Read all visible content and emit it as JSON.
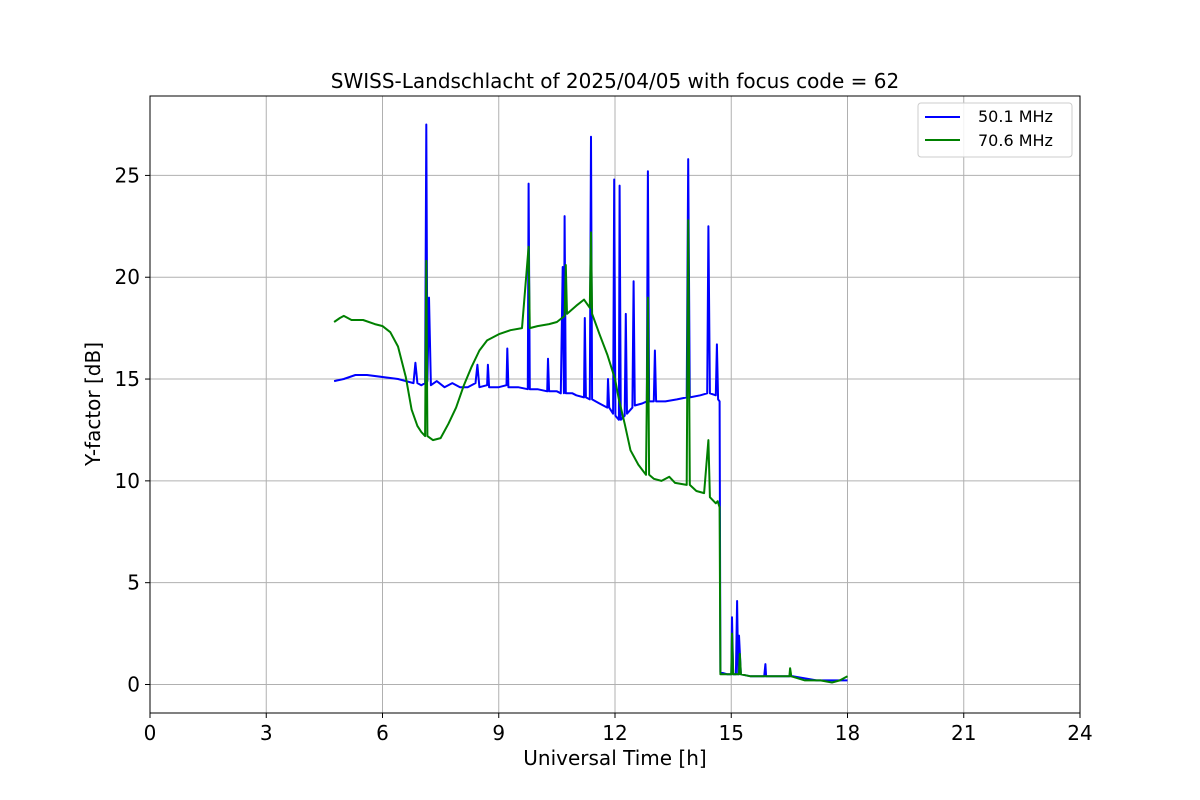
{
  "chart_data": {
    "type": "line",
    "title": "SWISS-Landschlacht of 2025/04/05 with focus code = 62",
    "xlabel": "Universal Time [h]",
    "ylabel": "Y-factor [dB]",
    "xlim": [
      0,
      24
    ],
    "ylim": [
      -1.4,
      28.9
    ],
    "xticks": [
      0,
      3,
      6,
      9,
      12,
      15,
      18,
      21,
      24
    ],
    "yticks": [
      0,
      5,
      10,
      15,
      20,
      25
    ],
    "grid": true,
    "legend_position": "top-right",
    "series": [
      {
        "name": "50.1 MHz",
        "color": "#0000ff",
        "points": [
          [
            4.75,
            14.9
          ],
          [
            5.0,
            15.0
          ],
          [
            5.3,
            15.2
          ],
          [
            5.6,
            15.2
          ],
          [
            6.0,
            15.1
          ],
          [
            6.4,
            15.0
          ],
          [
            6.8,
            14.8
          ],
          [
            6.85,
            15.8
          ],
          [
            6.9,
            14.8
          ],
          [
            7.0,
            14.7
          ],
          [
            7.1,
            14.8
          ],
          [
            7.13,
            27.5
          ],
          [
            7.16,
            14.9
          ],
          [
            7.2,
            19.0
          ],
          [
            7.25,
            14.7
          ],
          [
            7.4,
            14.9
          ],
          [
            7.6,
            14.6
          ],
          [
            7.8,
            14.8
          ],
          [
            8.0,
            14.6
          ],
          [
            8.2,
            14.6
          ],
          [
            8.4,
            14.8
          ],
          [
            8.45,
            15.7
          ],
          [
            8.5,
            14.6
          ],
          [
            8.7,
            14.7
          ],
          [
            8.72,
            15.7
          ],
          [
            8.75,
            14.6
          ],
          [
            9.0,
            14.6
          ],
          [
            9.2,
            14.7
          ],
          [
            9.22,
            16.5
          ],
          [
            9.25,
            14.6
          ],
          [
            9.5,
            14.6
          ],
          [
            9.75,
            14.5
          ],
          [
            9.77,
            24.6
          ],
          [
            9.8,
            14.5
          ],
          [
            10.0,
            14.5
          ],
          [
            10.25,
            14.4
          ],
          [
            10.27,
            16.0
          ],
          [
            10.3,
            14.4
          ],
          [
            10.5,
            14.4
          ],
          [
            10.6,
            14.3
          ],
          [
            10.65,
            20.5
          ],
          [
            10.68,
            14.3
          ],
          [
            10.7,
            23.0
          ],
          [
            10.73,
            14.3
          ],
          [
            10.9,
            14.3
          ],
          [
            11.0,
            14.2
          ],
          [
            11.2,
            14.1
          ],
          [
            11.22,
            18.0
          ],
          [
            11.25,
            14.1
          ],
          [
            11.35,
            14.0
          ],
          [
            11.38,
            26.9
          ],
          [
            11.41,
            14.0
          ],
          [
            11.6,
            13.8
          ],
          [
            11.8,
            13.6
          ],
          [
            11.82,
            15.0
          ],
          [
            11.85,
            13.6
          ],
          [
            11.95,
            13.3
          ],
          [
            11.98,
            24.8
          ],
          [
            12.01,
            13.2
          ],
          [
            12.1,
            13.0
          ],
          [
            12.12,
            24.5
          ],
          [
            12.15,
            13.0
          ],
          [
            12.25,
            13.2
          ],
          [
            12.28,
            18.2
          ],
          [
            12.31,
            13.3
          ],
          [
            12.45,
            13.6
          ],
          [
            12.48,
            19.8
          ],
          [
            12.51,
            13.7
          ],
          [
            12.7,
            13.8
          ],
          [
            12.82,
            13.9
          ],
          [
            12.85,
            25.2
          ],
          [
            12.88,
            13.9
          ],
          [
            13.0,
            13.9
          ],
          [
            13.03,
            16.4
          ],
          [
            13.06,
            13.9
          ],
          [
            13.3,
            13.9
          ],
          [
            13.6,
            14.0
          ],
          [
            13.85,
            14.1
          ],
          [
            13.89,
            25.8
          ],
          [
            13.93,
            14.1
          ],
          [
            14.2,
            14.2
          ],
          [
            14.38,
            14.3
          ],
          [
            14.41,
            22.5
          ],
          [
            14.45,
            14.3
          ],
          [
            14.6,
            14.2
          ],
          [
            14.63,
            16.7
          ],
          [
            14.66,
            14.0
          ],
          [
            14.7,
            13.9
          ],
          [
            14.72,
            0.6
          ],
          [
            14.9,
            0.5
          ],
          [
            15.0,
            0.5
          ],
          [
            15.02,
            3.3
          ],
          [
            15.05,
            0.5
          ],
          [
            15.12,
            0.5
          ],
          [
            15.15,
            4.1
          ],
          [
            15.18,
            0.5
          ],
          [
            15.2,
            2.4
          ],
          [
            15.25,
            0.5
          ],
          [
            15.5,
            0.4
          ],
          [
            15.85,
            0.4
          ],
          [
            15.88,
            1.0
          ],
          [
            15.9,
            0.4
          ],
          [
            16.2,
            0.4
          ],
          [
            16.6,
            0.4
          ],
          [
            16.9,
            0.3
          ],
          [
            17.2,
            0.2
          ],
          [
            17.5,
            0.2
          ],
          [
            18.0,
            0.2
          ]
        ]
      },
      {
        "name": "70.6 MHz",
        "color": "#008000",
        "points": [
          [
            4.75,
            17.8
          ],
          [
            4.9,
            18.0
          ],
          [
            5.0,
            18.1
          ],
          [
            5.2,
            17.9
          ],
          [
            5.5,
            17.9
          ],
          [
            5.8,
            17.7
          ],
          [
            6.0,
            17.6
          ],
          [
            6.2,
            17.3
          ],
          [
            6.4,
            16.6
          ],
          [
            6.6,
            15.1
          ],
          [
            6.75,
            13.5
          ],
          [
            6.9,
            12.7
          ],
          [
            7.0,
            12.4
          ],
          [
            7.1,
            12.2
          ],
          [
            7.13,
            20.8
          ],
          [
            7.16,
            12.2
          ],
          [
            7.3,
            12.0
          ],
          [
            7.5,
            12.1
          ],
          [
            7.7,
            12.8
          ],
          [
            7.9,
            13.6
          ],
          [
            8.1,
            14.7
          ],
          [
            8.3,
            15.6
          ],
          [
            8.5,
            16.4
          ],
          [
            8.7,
            16.9
          ],
          [
            9.0,
            17.2
          ],
          [
            9.3,
            17.4
          ],
          [
            9.6,
            17.5
          ],
          [
            9.77,
            21.5
          ],
          [
            9.8,
            17.5
          ],
          [
            10.0,
            17.6
          ],
          [
            10.3,
            17.7
          ],
          [
            10.5,
            17.8
          ],
          [
            10.7,
            18.1
          ],
          [
            10.73,
            20.6
          ],
          [
            10.76,
            18.2
          ],
          [
            11.0,
            18.6
          ],
          [
            11.2,
            18.9
          ],
          [
            11.35,
            18.5
          ],
          [
            11.38,
            22.2
          ],
          [
            11.41,
            18.2
          ],
          [
            11.6,
            17.2
          ],
          [
            11.8,
            16.2
          ],
          [
            12.0,
            15.0
          ],
          [
            12.1,
            14.0
          ],
          [
            12.25,
            12.8
          ],
          [
            12.4,
            11.5
          ],
          [
            12.6,
            10.8
          ],
          [
            12.8,
            10.3
          ],
          [
            12.85,
            19.0
          ],
          [
            12.88,
            10.3
          ],
          [
            13.0,
            10.1
          ],
          [
            13.2,
            10.0
          ],
          [
            13.4,
            10.2
          ],
          [
            13.55,
            9.9
          ],
          [
            13.85,
            9.8
          ],
          [
            13.89,
            22.8
          ],
          [
            13.93,
            9.8
          ],
          [
            14.1,
            9.5
          ],
          [
            14.3,
            9.4
          ],
          [
            14.41,
            12.0
          ],
          [
            14.45,
            9.2
          ],
          [
            14.6,
            8.9
          ],
          [
            14.65,
            9.0
          ],
          [
            14.7,
            8.7
          ],
          [
            14.72,
            0.5
          ],
          [
            14.9,
            0.5
          ],
          [
            15.0,
            0.5
          ],
          [
            15.02,
            2.5
          ],
          [
            15.05,
            0.5
          ],
          [
            15.2,
            0.5
          ],
          [
            15.22,
            1.5
          ],
          [
            15.25,
            0.5
          ],
          [
            15.5,
            0.4
          ],
          [
            16.0,
            0.4
          ],
          [
            16.5,
            0.4
          ],
          [
            16.52,
            0.8
          ],
          [
            16.55,
            0.4
          ],
          [
            16.9,
            0.2
          ],
          [
            17.3,
            0.2
          ],
          [
            17.6,
            0.1
          ],
          [
            17.8,
            0.2
          ],
          [
            18.0,
            0.4
          ]
        ]
      }
    ]
  }
}
